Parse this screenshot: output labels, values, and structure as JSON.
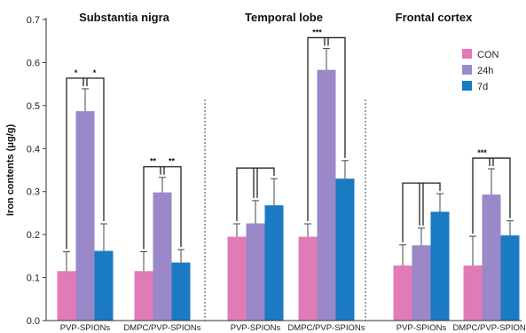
{
  "chart_data": {
    "type": "bar",
    "ylabel": "Iron contents (μg/g)",
    "ylim": [
      0,
      0.7
    ],
    "yticks": [
      "0.0",
      "0.1",
      "0.2",
      "0.3",
      "0.4",
      "0.5",
      "0.6",
      "0.7"
    ],
    "legend": {
      "position": "top-right",
      "entries": [
        "CON",
        "24h",
        "7d"
      ]
    },
    "colors": {
      "CON": "#e07bb8",
      "24h": "#9a88c8",
      "7d": "#1a7ac2"
    },
    "panels": [
      {
        "title": "Substantia nigra",
        "groups": [
          {
            "label": "PVP-SPIONs",
            "values": [
              0.115,
              0.487,
              0.162
            ],
            "errors": [
              0.045,
              0.052,
              0.063
            ],
            "significance": [
              "*",
              "*"
            ]
          },
          {
            "label": "DMPC/PVP-SPIONs",
            "values": [
              0.115,
              0.298,
              0.135
            ],
            "errors": [
              0.045,
              0.035,
              0.03
            ],
            "significance": [
              "**",
              "**"
            ]
          }
        ]
      },
      {
        "title": "Temporal lobe",
        "groups": [
          {
            "label": "PVP-SPIONs",
            "values": [
              0.195,
              0.226,
              0.268
            ],
            "errors": [
              0.03,
              0.053,
              0.062
            ],
            "significance": [
              "",
              ""
            ]
          },
          {
            "label": "DMPC/PVP-SPIONs",
            "values": [
              0.195,
              0.583,
              0.33
            ],
            "errors": [
              0.03,
              0.05,
              0.042
            ],
            "significance": [
              "***",
              ""
            ]
          }
        ]
      },
      {
        "title": "Frontal cortex",
        "groups": [
          {
            "label": "PVP-SPIONs",
            "values": [
              0.128,
              0.175,
              0.253
            ],
            "errors": [
              0.048,
              0.04,
              0.042
            ],
            "significance": [
              "",
              ""
            ]
          },
          {
            "label": "DMPC/PVP-SPIONs",
            "values": [
              0.128,
              0.293,
              0.198
            ],
            "errors": [
              0.068,
              0.06,
              0.034
            ],
            "significance": [
              "***",
              ""
            ]
          }
        ]
      }
    ]
  }
}
